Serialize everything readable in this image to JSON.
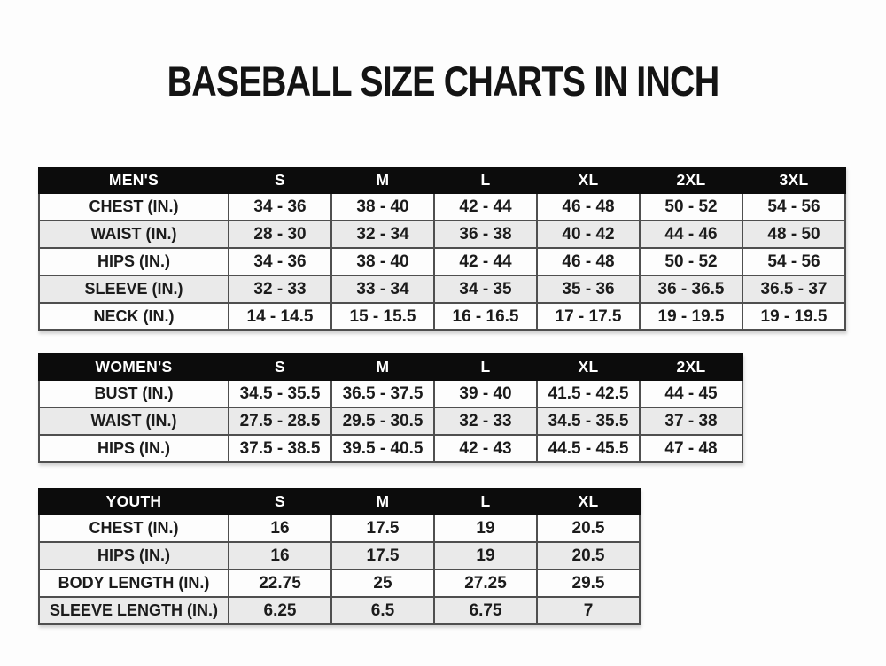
{
  "title": "BASEBALL SIZE CHARTS IN INCH",
  "colors": {
    "header_bg": "#0c0c0c",
    "header_text": "#ffffff",
    "row_white": "#fdfdfd",
    "row_stripe": "#eaeaea",
    "border": "#4f4f4f",
    "text": "#1b1b1b"
  },
  "chart_data": [
    {
      "type": "table",
      "title": "MEN'S",
      "columns": [
        "MEN'S",
        "S",
        "M",
        "L",
        "XL",
        "2XL",
        "3XL"
      ],
      "rows": [
        [
          "CHEST (IN.)",
          "34 - 36",
          "38 - 40",
          "42 - 44",
          "46 - 48",
          "50 - 52",
          "54 - 56"
        ],
        [
          "WAIST (IN.)",
          "28 - 30",
          "32 - 34",
          "36 - 38",
          "40 - 42",
          "44 - 46",
          "48 - 50"
        ],
        [
          "HIPS (IN.)",
          "34 - 36",
          "38 - 40",
          "42 - 44",
          "46 - 48",
          "50 - 52",
          "54 - 56"
        ],
        [
          "SLEEVE (IN.)",
          "32 - 33",
          "33 - 34",
          "34 - 35",
          "35 - 36",
          "36 - 36.5",
          "36.5 - 37"
        ],
        [
          "NECK (IN.)",
          "14 - 14.5",
          "15 - 15.5",
          "16 - 16.5",
          "17 - 17.5",
          "19 - 19.5",
          "19 - 19.5"
        ]
      ]
    },
    {
      "type": "table",
      "title": "WOMEN'S",
      "columns": [
        "WOMEN'S",
        "S",
        "M",
        "L",
        "XL",
        "2XL"
      ],
      "rows": [
        [
          "BUST (IN.)",
          "34.5 - 35.5",
          "36.5 - 37.5",
          "39 - 40",
          "41.5 - 42.5",
          "44 - 45"
        ],
        [
          "WAIST (IN.)",
          "27.5 - 28.5",
          "29.5 - 30.5",
          "32 - 33",
          "34.5 - 35.5",
          "37 - 38"
        ],
        [
          "HIPS (IN.)",
          "37.5 - 38.5",
          "39.5 - 40.5",
          "42 - 43",
          "44.5 - 45.5",
          "47 - 48"
        ]
      ]
    },
    {
      "type": "table",
      "title": "YOUTH",
      "columns": [
        "YOUTH",
        "S",
        "M",
        "L",
        "XL"
      ],
      "rows": [
        [
          "CHEST (IN.)",
          "16",
          "17.5",
          "19",
          "20.5"
        ],
        [
          "HIPS (IN.)",
          "16",
          "17.5",
          "19",
          "20.5"
        ],
        [
          "BODY LENGTH (IN.)",
          "22.75",
          "25",
          "27.25",
          "29.5"
        ],
        [
          "SLEEVE LENGTH (IN.)",
          "6.25",
          "6.5",
          "6.75",
          "7"
        ]
      ]
    }
  ]
}
